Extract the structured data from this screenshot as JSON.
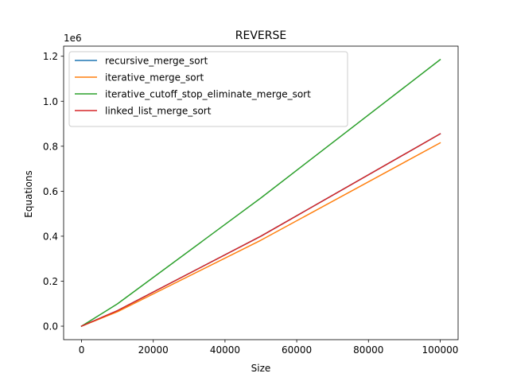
{
  "chart_data": {
    "type": "line",
    "title": "REVERSE",
    "xlabel": "Size",
    "ylabel": "Equations",
    "y_offset_text": "1e6",
    "xlim": [
      -5000,
      105000
    ],
    "ylim": [
      -60000,
      1245000
    ],
    "x_ticks": [
      0,
      20000,
      40000,
      60000,
      80000,
      100000
    ],
    "x_tick_labels": [
      "0",
      "20000",
      "40000",
      "60000",
      "80000",
      "100000"
    ],
    "y_ticks": [
      0,
      200000,
      400000,
      600000,
      800000,
      1000000,
      1200000
    ],
    "y_tick_labels": [
      "0.0",
      "0.2",
      "0.4",
      "0.6",
      "0.8",
      "1.0",
      "1.2"
    ],
    "grid": false,
    "legend_position": "top-left",
    "x": [
      0,
      10000,
      50000,
      100000
    ],
    "series": [
      {
        "name": "recursive_merge_sort",
        "color": "#1f77b4",
        "values": [
          0,
          69000,
          400000,
          855000
        ]
      },
      {
        "name": "iterative_merge_sort",
        "color": "#ff7f0e",
        "values": [
          0,
          64000,
          382000,
          815000
        ]
      },
      {
        "name": "iterative_cutoff_stop_eliminate_merge_sort",
        "color": "#2ca02c",
        "values": [
          0,
          99000,
          570000,
          1185000
        ]
      },
      {
        "name": "linked_list_merge_sort",
        "color": "#d62728",
        "values": [
          0,
          69000,
          400000,
          855000
        ]
      }
    ]
  }
}
